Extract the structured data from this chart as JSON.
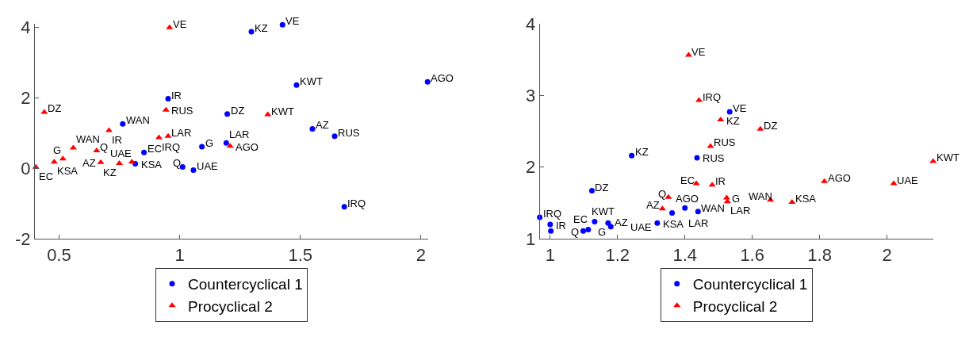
{
  "chart_data": [
    {
      "type": "scatter",
      "xlim": [
        0.4,
        2.03
      ],
      "ylim": [
        -2,
        4.1
      ],
      "xticks": [
        0.5,
        1,
        1.5,
        2
      ],
      "yticks": [
        -2,
        0,
        2,
        4
      ],
      "legend": "bottom",
      "series": [
        {
          "name": "Countercyclical 1",
          "color": "#0000ff",
          "marker": "circle",
          "x": [
            0.952,
            0.764,
            0.816,
            0.852,
            1.012,
            1.057,
            1.092,
            1.197,
            1.193,
            1.297,
            1.426,
            1.484,
            1.55,
            1.642,
            1.682,
            2.027
          ],
          "values": [
            1.97,
            1.26,
            0.13,
            0.45,
            0.04,
            -0.05,
            0.61,
            1.54,
            0.72,
            3.87,
            4.07,
            2.36,
            1.12,
            0.91,
            -1.09,
            2.45
          ]
        },
        {
          "name": "Procyclical 2",
          "color": "#ff0000",
          "marker": "triangle",
          "x": [
            0.958,
            0.439,
            0.404,
            0.48,
            0.516,
            0.559,
            0.656,
            0.707,
            0.673,
            0.75,
            0.802,
            0.914,
            0.952,
            0.943,
            1.209,
            1.365
          ],
          "values": [
            3.99,
            1.59,
            0.03,
            0.18,
            0.27,
            0.58,
            0.5,
            1.07,
            0.17,
            0.14,
            0.18,
            0.87,
            0.91,
            1.65,
            0.63,
            1.52
          ]
        }
      ],
      "annotations": [
        {
          "text": "IR",
          "x": 0.952,
          "y": 1.97
        },
        {
          "text": "WAN",
          "x": 0.764,
          "y": 1.26
        },
        {
          "text": "KSA",
          "x": 0.816,
          "y": 0.13
        },
        {
          "text": "EC",
          "x": 0.852,
          "y": 0.45
        },
        {
          "text": "Q",
          "x": 1.012,
          "y": 0.04
        },
        {
          "text": "UAE",
          "x": 1.057,
          "y": -0.05
        },
        {
          "text": "G",
          "x": 1.092,
          "y": 0.61
        },
        {
          "text": "DZ",
          "x": 1.197,
          "y": 1.54
        },
        {
          "text": "LAR",
          "x": 1.193,
          "y": 0.72
        },
        {
          "text": "KZ",
          "x": 1.297,
          "y": 3.87
        },
        {
          "text": "VE",
          "x": 1.426,
          "y": 4.07
        },
        {
          "text": "KWT",
          "x": 1.484,
          "y": 2.36
        },
        {
          "text": "AZ",
          "x": 1.55,
          "y": 1.12
        },
        {
          "text": "RUS",
          "x": 1.642,
          "y": 0.91
        },
        {
          "text": "IRQ",
          "x": 1.682,
          "y": -1.09
        },
        {
          "text": "AGO",
          "x": 2.027,
          "y": 2.45
        },
        {
          "text": "VE",
          "x": 0.958,
          "y": 3.99
        },
        {
          "text": "DZ",
          "x": 0.439,
          "y": 1.59
        },
        {
          "text": "EC",
          "x": 0.404,
          "y": 0.03
        },
        {
          "text": "KSA",
          "x": 0.48,
          "y": 0.18
        },
        {
          "text": "G",
          "x": 0.516,
          "y": 0.27
        },
        {
          "text": "WAN",
          "x": 0.559,
          "y": 0.58
        },
        {
          "text": "Q",
          "x": 0.656,
          "y": 0.5
        },
        {
          "text": "IR",
          "x": 0.707,
          "y": 1.07
        },
        {
          "text": "AZ",
          "x": 0.673,
          "y": 0.17
        },
        {
          "text": "KZ",
          "x": 0.75,
          "y": 0.14
        },
        {
          "text": "UAE",
          "x": 0.802,
          "y": 0.18
        },
        {
          "text": "IRQ",
          "x": 0.914,
          "y": 0.87
        },
        {
          "text": "LAR",
          "x": 0.952,
          "y": 0.91
        },
        {
          "text": "RUS",
          "x": 0.943,
          "y": 1.65
        },
        {
          "text": "AGO",
          "x": 1.209,
          "y": 0.63
        },
        {
          "text": "KWT",
          "x": 1.365,
          "y": 1.52
        }
      ]
    },
    {
      "type": "scatter",
      "xlim": [
        0.969,
        2.137
      ],
      "ylim": [
        1,
        4
      ],
      "xticks": [
        1,
        1.2,
        1.4,
        1.6,
        1.8,
        2
      ],
      "yticks": [
        1,
        2,
        3,
        4
      ],
      "legend": "bottom",
      "series": [
        {
          "name": "Countercyclical 1",
          "color": "#0000ff",
          "marker": "circle",
          "x": [
            0.969,
            1.0,
            1.002,
            1.098,
            1.113,
            1.132,
            1.172,
            1.18,
            1.124,
            1.242,
            1.318,
            1.362,
            1.4,
            1.439,
            1.436,
            1.533
          ],
          "values": [
            1.3,
            1.2,
            1.11,
            1.11,
            1.13,
            1.24,
            1.22,
            1.17,
            1.67,
            2.16,
            1.22,
            1.36,
            1.43,
            1.38,
            2.13,
            2.77
          ]
        },
        {
          "name": "Procyclical 2",
          "color": "#ff0000",
          "marker": "triangle",
          "x": [
            1.411,
            1.442,
            1.506,
            1.476,
            1.624,
            1.434,
            1.481,
            1.351,
            1.333,
            1.524,
            1.526,
            1.654,
            1.718,
            1.814,
            2.02,
            2.137
          ],
          "values": [
            3.56,
            2.93,
            2.66,
            2.29,
            2.53,
            1.77,
            1.75,
            1.58,
            1.42,
            1.57,
            1.52,
            1.54,
            1.51,
            1.8,
            1.77,
            2.08
          ]
        }
      ],
      "annotations": [
        {
          "text": "IRQ",
          "x": 0.969,
          "y": 1.3
        },
        {
          "text": "IR",
          "x": 1.0,
          "y": 1.2
        },
        {
          "text": "EC",
          "x": 1.002,
          "y": 1.11
        },
        {
          "text": "Q",
          "x": 1.098,
          "y": 1.11
        },
        {
          "text": "KWT",
          "x": 1.113,
          "y": 1.13
        },
        {
          "text": "AZ",
          "x": 1.132,
          "y": 1.24
        },
        {
          "text": "G",
          "x": 1.172,
          "y": 1.22
        },
        {
          "text": "UAE",
          "x": 1.18,
          "y": 1.17
        },
        {
          "text": "DZ",
          "x": 1.124,
          "y": 1.67
        },
        {
          "text": "KZ",
          "x": 1.242,
          "y": 2.16
        },
        {
          "text": "KSA",
          "x": 1.318,
          "y": 1.22
        },
        {
          "text": "AGO",
          "x": 1.362,
          "y": 1.36
        },
        {
          "text": "LAR",
          "x": 1.4,
          "y": 1.43
        },
        {
          "text": "WAN",
          "x": 1.439,
          "y": 1.38
        },
        {
          "text": "RUS",
          "x": 1.436,
          "y": 2.13
        },
        {
          "text": "VE",
          "x": 1.533,
          "y": 2.77
        },
        {
          "text": "VE",
          "x": 1.411,
          "y": 3.56
        },
        {
          "text": "IRQ",
          "x": 1.442,
          "y": 2.93
        },
        {
          "text": "KZ",
          "x": 1.506,
          "y": 2.66
        },
        {
          "text": "RUS",
          "x": 1.476,
          "y": 2.29
        },
        {
          "text": "DZ",
          "x": 1.624,
          "y": 2.53
        },
        {
          "text": "EC",
          "x": 1.434,
          "y": 1.77
        },
        {
          "text": "IR",
          "x": 1.481,
          "y": 1.75
        },
        {
          "text": "Q",
          "x": 1.351,
          "y": 1.58
        },
        {
          "text": "AZ",
          "x": 1.333,
          "y": 1.42
        },
        {
          "text": "G",
          "x": 1.524,
          "y": 1.57
        },
        {
          "text": "LAR",
          "x": 1.526,
          "y": 1.52
        },
        {
          "text": "WAN",
          "x": 1.654,
          "y": 1.54
        },
        {
          "text": "KSA",
          "x": 1.718,
          "y": 1.51
        },
        {
          "text": "AGO",
          "x": 1.814,
          "y": 1.8
        },
        {
          "text": "UAE",
          "x": 2.02,
          "y": 1.77
        },
        {
          "text": "KWT",
          "x": 2.137,
          "y": 2.08
        }
      ]
    }
  ]
}
